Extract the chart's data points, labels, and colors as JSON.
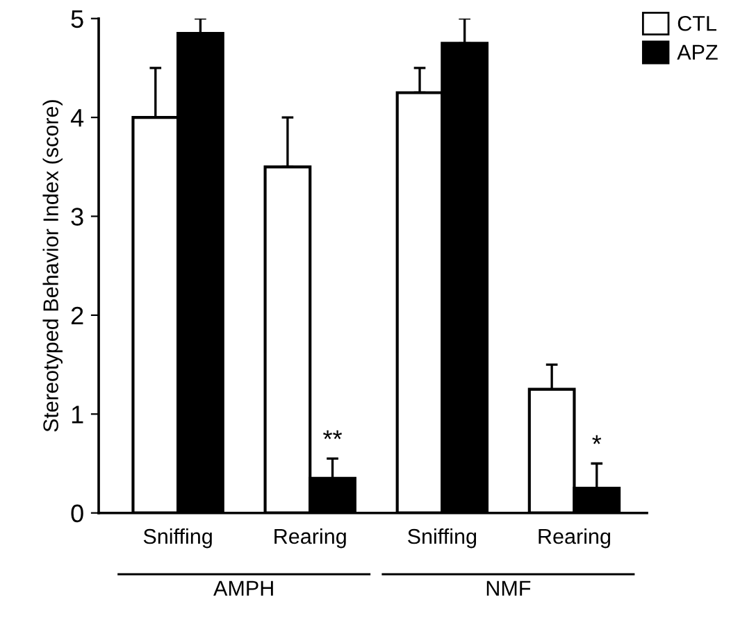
{
  "chart_data": {
    "type": "bar",
    "ylabel": "Stereotyped Behavior Index (score)",
    "categories": [
      "Sniffing",
      "Rearing",
      "Sniffing",
      "Rearing"
    ],
    "series": [
      {
        "name": "CTL",
        "color": "#ffffff",
        "values": [
          4.0,
          3.5,
          4.25,
          1.25
        ],
        "errors": [
          [
            4.0,
            4.5
          ],
          [
            3.5,
            4.0
          ],
          [
            4.25,
            4.5
          ],
          [
            1.25,
            1.5
          ]
        ]
      },
      {
        "name": "APZ",
        "color": "#000000",
        "values": [
          4.85,
          0.35,
          4.75,
          0.25
        ],
        "errors": [
          [
            4.85,
            5.0
          ],
          [
            0.35,
            0.55
          ],
          [
            4.75,
            5.0
          ],
          [
            0.25,
            0.5
          ]
        ]
      }
    ],
    "annotations": [
      "**",
      "*",
      "AMPH",
      "NMF"
    ],
    "ylim": [
      0,
      5
    ],
    "yticks": [
      0,
      1,
      2,
      3,
      4,
      5
    ],
    "grid": false,
    "legend": "top right"
  }
}
